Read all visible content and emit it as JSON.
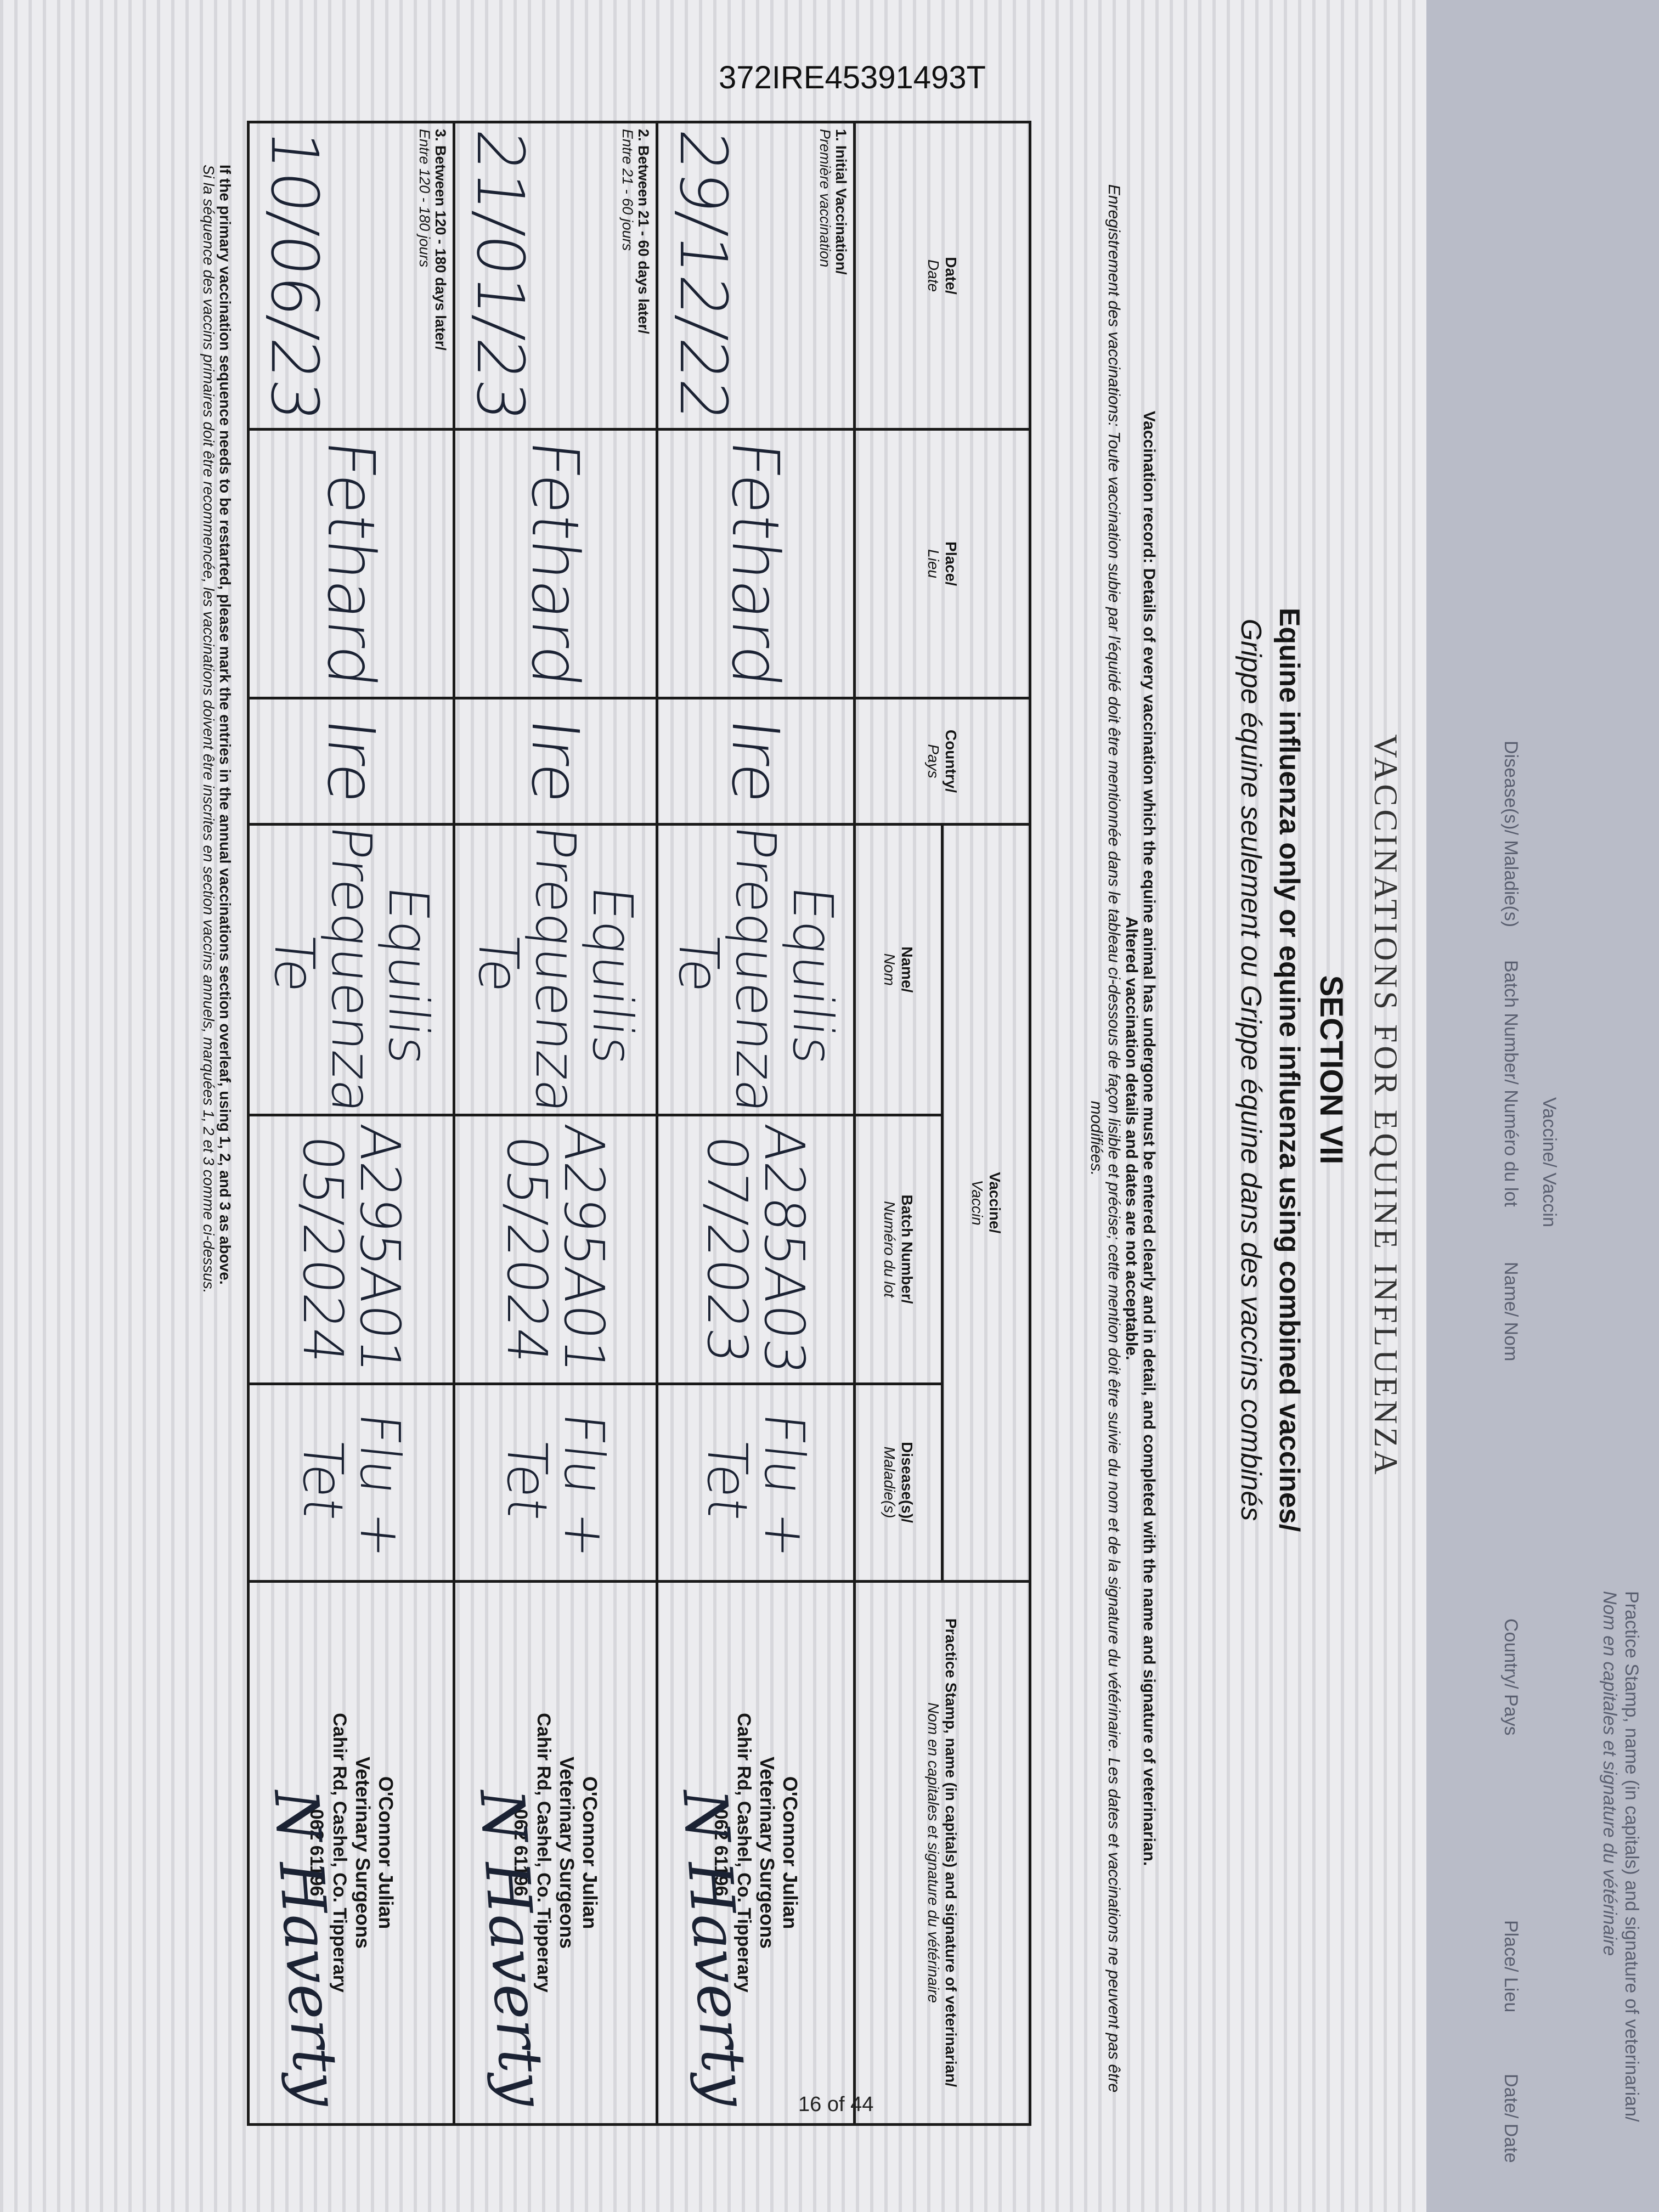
{
  "document_id": "372IRE45391493T",
  "page_number": "16 of 44",
  "section": {
    "running_title": "VACCINATIONS FOR EQUINE INFLUENZA",
    "number": "SECTION VII",
    "title_en": "Equine influenza only or equine influenza using combined vaccines/",
    "title_fr": "Grippe équine seulement ou Grippe équine dans des vaccins combinés"
  },
  "instructions": {
    "en": "Vaccination record: Details of every vaccination which the equine animal has undergone must be entered clearly and in detail, and completed with the name and signature of veterinarian.",
    "en_warning": "Altered vaccination details and dates are not acceptable.",
    "fr": "Enregistrement des vaccinations: Toute vaccination subie par l'équidé doit être mentionnée dans le tableau ci-dessous de façon lisible et précise; cette mention doit être suivie du nom et de la signature du vétérinaire. Les dates et vaccinations ne peuvent pas être modifiées."
  },
  "table": {
    "headers": {
      "date": "Date/",
      "date_fr": "Date",
      "place": "Place/",
      "place_fr": "Lieu",
      "country": "Country/",
      "country_fr": "Pays",
      "vaccine": "Vaccine/",
      "vaccine_fr": "Vaccin",
      "name": "Name/",
      "name_fr": "Nom",
      "batch": "Batch Number/",
      "batch_fr": "Numéro du lot",
      "disease": "Disease(s)/",
      "disease_fr": "Maladie(s)",
      "stamp": "Practice Stamp, name (in capitals) and signature of veterinarian/",
      "stamp_fr": "Nom en capitales et signature du vétérinaire"
    },
    "rows": [
      {
        "label": "1. Initial Vaccination/",
        "label_fr": "Première vaccination",
        "date": "29/12/22",
        "place": "Fethard",
        "country": "Ire",
        "name": "Equilis Prequenza Te",
        "batch": "A285A03",
        "expiry": "07/2023",
        "disease": "Flu + Tet",
        "stamp_name": "O'Connor Julian",
        "stamp_type": "Veterinary Surgeons",
        "stamp_address": "Cahir Rd, Cashel, Co. Tipperary",
        "stamp_phone": "062 61196",
        "signature": "N Haverty"
      },
      {
        "label": "2. Between 21 - 60 days later/",
        "label_fr": "Entre 21 - 60 jours",
        "date": "21/01/23",
        "place": "Fethard",
        "country": "Ire",
        "name": "Equilis Prequenza Te",
        "batch": "A295A01",
        "expiry": "05/2024",
        "disease": "Flu + Tet",
        "stamp_name": "O'Connor Julian",
        "stamp_type": "Veterinary Surgeons",
        "stamp_address": "Cahir Rd, Cashel, Co. Tipperary",
        "stamp_phone": "062 61196",
        "signature": "N Haverty"
      },
      {
        "label": "3. Between 120 - 180 days later/",
        "label_fr": "Entre 120 - 180 jours",
        "date": "10/06/23",
        "place": "Fethard",
        "country": "Ire",
        "name": "Equilis Prequenza Te",
        "batch": "A295A01",
        "expiry": "05/2024",
        "disease": "Flu + Tet",
        "stamp_name": "O'Connor Julian",
        "stamp_type": "Veterinary Surgeons",
        "stamp_address": "Cahir Rd, Cashel, Co. Tipperary",
        "stamp_phone": "062 61196",
        "signature": "N Haverty"
      }
    ]
  },
  "footer": {
    "en": "If the primary vaccination sequence needs to be restarted, please mark the entries in the annual vaccinations section overleaf, using 1, 2, and 3 as above.",
    "fr": "Si la séquence des vaccins primaires doit être recommencée, les vaccinations doivent être inscrites en section vaccins annuels, marquées 1, 2 et 3 comme ci-dessus."
  },
  "next_page": {
    "stamp": "Practice Stamp, name (in capitals) and signature of veterinarian/",
    "stamp_fr": "Nom en capitales et signature du vétérinaire",
    "columns": [
      "Date/ Date",
      "Place/ Lieu",
      "Country/ Pays",
      "Name/ Nom",
      "Vaccine/ Vaccin",
      "Batch Number/ Numéro du lot",
      "Disease(s)/ Maladie(s)"
    ]
  },
  "colors": {
    "ink": "#1b2233",
    "paper": "#ececef",
    "cover": "#7d8c74"
  }
}
